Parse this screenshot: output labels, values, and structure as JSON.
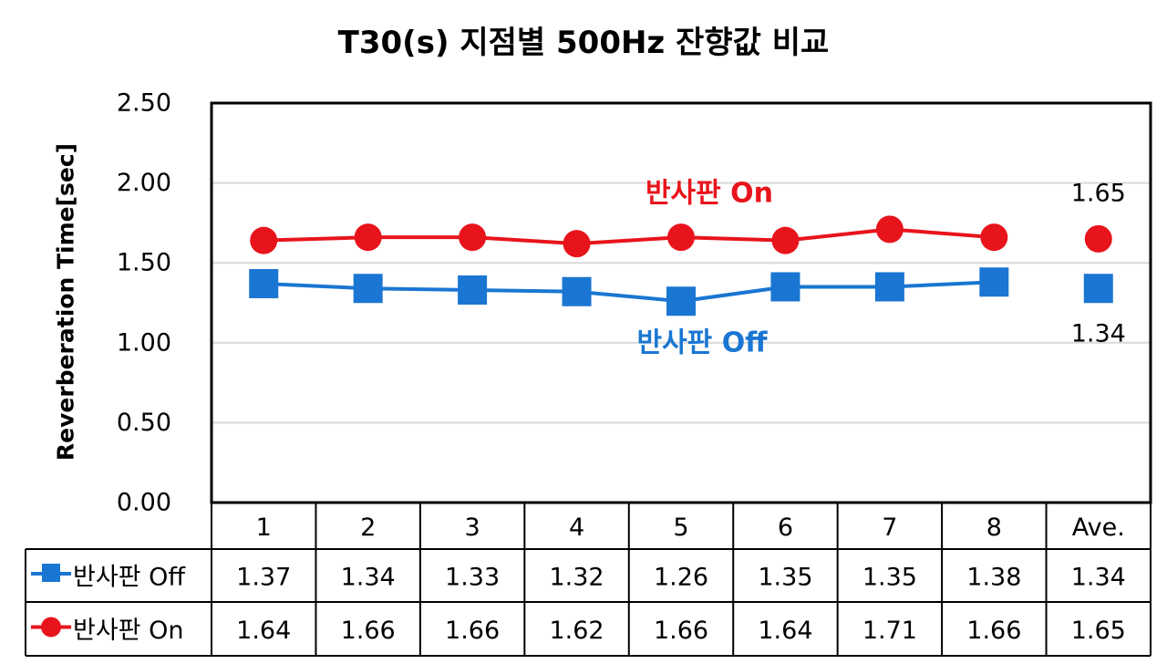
{
  "chart_data": {
    "type": "line",
    "title": "T30(s) 지점별 500Hz 잔향값 비교",
    "ylabel": "Reverberation Time[sec]",
    "xlabel": "",
    "ylim": [
      0,
      2.5
    ],
    "ytick_labels": [
      "0.00",
      "0.50",
      "1.00",
      "1.50",
      "2.00",
      "2.50"
    ],
    "grid": true,
    "categories": [
      "1",
      "2",
      "3",
      "4",
      "5",
      "6",
      "7",
      "8",
      "Ave."
    ],
    "series": [
      {
        "name": "반사판 Off",
        "color": "#1a76d2",
        "marker": "square",
        "values": [
          1.37,
          1.34,
          1.33,
          1.32,
          1.26,
          1.35,
          1.35,
          1.38,
          1.34
        ],
        "value_labels": [
          "1.37",
          "1.34",
          "1.33",
          "1.32",
          "1.26",
          "1.35",
          "1.35",
          "1.38",
          "1.34"
        ]
      },
      {
        "name": "반사판 On",
        "color": "#e8141c",
        "marker": "circle",
        "values": [
          1.64,
          1.66,
          1.66,
          1.62,
          1.66,
          1.64,
          1.71,
          1.66,
          1.65
        ],
        "value_labels": [
          "1.64",
          "1.66",
          "1.66",
          "1.62",
          "1.66",
          "1.64",
          "1.71",
          "1.66",
          "1.65"
        ]
      }
    ],
    "annotations": [
      {
        "text": "반사판 On",
        "color": "#e8141c"
      },
      {
        "text": "반사판 Off",
        "color": "#1a76d2"
      },
      {
        "text": "1.65"
      },
      {
        "text": "1.34"
      }
    ],
    "data_table": true
  }
}
